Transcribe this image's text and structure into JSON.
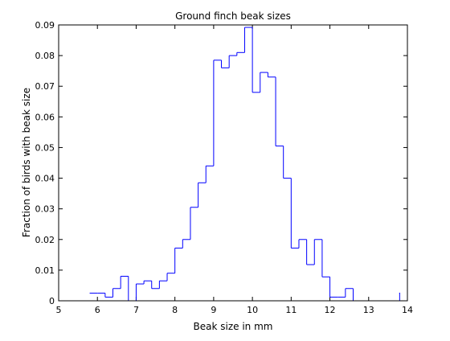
{
  "chart_data": {
    "type": "line",
    "style": "stairs",
    "title": "Ground finch beak sizes",
    "xlabel": "Beak size in mm",
    "ylabel": "Fraction of birds with beak size",
    "xlim": [
      5,
      14
    ],
    "ylim": [
      0,
      0.09
    ],
    "xticks": [
      "5",
      "6",
      "7",
      "8",
      "9",
      "10",
      "11",
      "12",
      "13",
      "14"
    ],
    "yticks": [
      "0",
      "0.01",
      "0.02",
      "0.03",
      "0.04",
      "0.05",
      "0.06",
      "0.07",
      "0.08",
      "0.09"
    ],
    "grid": false,
    "line_color": "#0000ff",
    "series": [
      {
        "x": [
          5.8,
          6.0,
          6.2,
          6.4,
          6.6,
          6.8,
          7.0,
          7.2,
          7.4,
          7.6,
          7.8,
          8.0,
          8.2,
          8.4,
          8.6,
          8.8,
          9.0,
          9.2,
          9.4,
          9.6,
          9.8,
          10.0,
          10.2,
          10.4,
          10.6,
          10.8,
          11.0,
          11.2,
          11.4,
          11.6,
          11.8,
          12.0,
          12.2,
          12.4,
          12.6,
          12.8,
          13.0,
          13.2,
          13.4,
          13.6,
          13.8
        ],
        "values": [
          0.0025,
          0.0025,
          0.0012,
          0.004,
          0.008,
          0.0,
          0.0055,
          0.0065,
          0.004,
          0.0065,
          0.009,
          0.0172,
          0.02,
          0.0305,
          0.0385,
          0.044,
          0.0785,
          0.076,
          0.08,
          0.081,
          0.0892,
          0.068,
          0.0745,
          0.073,
          0.0505,
          0.04,
          0.0172,
          0.02,
          0.0118,
          0.02,
          0.0078,
          0.0012,
          0.0012,
          0.004,
          0.0,
          0.0,
          0.0,
          0.0,
          0.0,
          0.0,
          0.0025
        ]
      }
    ]
  }
}
